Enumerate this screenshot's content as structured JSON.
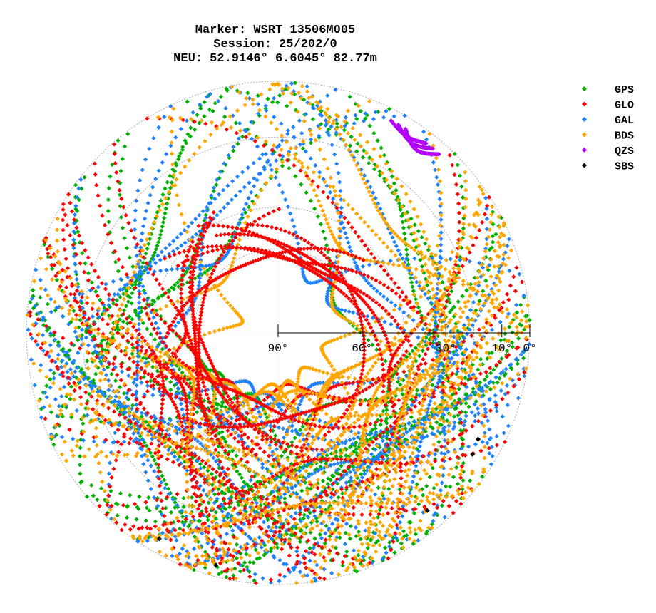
{
  "chart_data": {
    "type": "scatter",
    "subtype": "polar skyplot",
    "title_lines": [
      "Marker: WSRT 13506M005",
      "Session: 25/202/0",
      "NEU: 52.9146° 6.6045° 82.77m"
    ],
    "radial_axis": {
      "quantity": "elevation",
      "ticks": [
        {
          "value": 90,
          "label": "90°"
        },
        {
          "value": 60,
          "label": "60°"
        },
        {
          "value": 30,
          "label": "30°"
        },
        {
          "value": 10,
          "label": "10°"
        },
        {
          "value": 0,
          "label": "0°"
        }
      ]
    },
    "grid": true,
    "legend_position": "top-right",
    "series": [
      {
        "name": "GPS",
        "color": "#00b000"
      },
      {
        "name": "GLO",
        "color": "#ff0000"
      },
      {
        "name": "GAL",
        "color": "#1e82ff"
      },
      {
        "name": "BDS",
        "color": "#ffa500"
      },
      {
        "name": "QZS",
        "color": "#b400ff"
      },
      {
        "name": "SBS",
        "color": "#000000"
      }
    ]
  }
}
